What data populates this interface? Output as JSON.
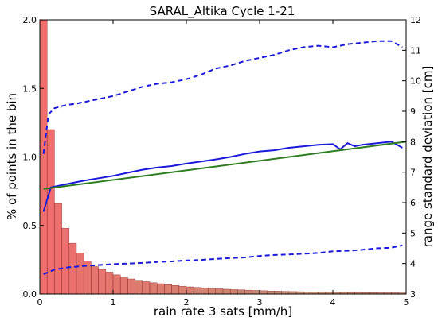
{
  "chart_data": {
    "type": "bar",
    "title": "SARAL_Altika Cycle 1-21",
    "xlabel": "rain rate 3 sats [mm/h]",
    "ylabel_left": "% of points in the bin",
    "ylabel_right": "range standard deviation [cm]",
    "xlim": [
      0,
      5
    ],
    "ylim_left": [
      0.0,
      2.0
    ],
    "ylim_right": [
      3,
      12
    ],
    "x_ticks": [
      "0",
      "1",
      "2",
      "3",
      "4",
      "5"
    ],
    "y_left_ticks": [
      "0.0",
      "0.5",
      "1.0",
      "1.5",
      "2.0"
    ],
    "y_right_ticks": [
      "3",
      "4",
      "5",
      "6",
      "7",
      "8",
      "9",
      "10",
      "11",
      "12"
    ],
    "grid": false,
    "histogram": {
      "axis": "left",
      "bin_width": 0.1,
      "bin_starts": [
        0.0,
        0.1,
        0.2,
        0.3,
        0.4,
        0.5,
        0.6,
        0.7,
        0.8,
        0.9,
        1.0,
        1.1,
        1.2,
        1.3,
        1.4,
        1.5,
        1.6,
        1.7,
        1.8,
        1.9,
        2.0,
        2.1,
        2.2,
        2.3,
        2.4,
        2.5,
        2.6,
        2.7,
        2.8,
        2.9,
        3.0,
        3.1,
        3.2,
        3.3,
        3.4,
        3.5,
        3.6,
        3.7,
        3.8,
        3.9,
        4.0,
        4.1,
        4.2,
        4.3,
        4.4,
        4.5,
        4.6,
        4.7,
        4.8,
        4.9
      ],
      "values": [
        2.0,
        1.2,
        0.66,
        0.48,
        0.37,
        0.3,
        0.24,
        0.2,
        0.18,
        0.16,
        0.14,
        0.125,
        0.11,
        0.1,
        0.09,
        0.082,
        0.075,
        0.068,
        0.062,
        0.057,
        0.052,
        0.048,
        0.044,
        0.041,
        0.038,
        0.035,
        0.032,
        0.03,
        0.028,
        0.026,
        0.024,
        0.022,
        0.021,
        0.019,
        0.018,
        0.017,
        0.016,
        0.015,
        0.014,
        0.013,
        0.012,
        0.012,
        0.011,
        0.011,
        0.01,
        0.01,
        0.009,
        0.009,
        0.009,
        0.008
      ]
    },
    "series": [
      {
        "axis": "right",
        "style": "solid",
        "color": "#1a1adb",
        "x": [
          0.05,
          0.15,
          0.25,
          0.35,
          0.45,
          0.6,
          0.8,
          1.0,
          1.2,
          1.4,
          1.6,
          1.8,
          2.0,
          2.2,
          2.4,
          2.6,
          2.8,
          3.0,
          3.2,
          3.4,
          3.6,
          3.8,
          4.0,
          4.1,
          4.2,
          4.3,
          4.4,
          4.6,
          4.8,
          4.95
        ],
        "y": [
          5.7,
          6.5,
          6.55,
          6.6,
          6.65,
          6.72,
          6.8,
          6.88,
          6.98,
          7.08,
          7.15,
          7.2,
          7.28,
          7.35,
          7.42,
          7.5,
          7.6,
          7.68,
          7.72,
          7.8,
          7.85,
          7.9,
          7.92,
          7.75,
          7.95,
          7.85,
          7.9,
          7.95,
          8.0,
          7.8
        ]
      },
      {
        "axis": "right",
        "style": "dashed",
        "color": "#1a1adb",
        "x": [
          0.05,
          0.12,
          0.2,
          0.35,
          0.5,
          0.7,
          0.9,
          1.0,
          1.2,
          1.4,
          1.6,
          1.8,
          2.0,
          2.2,
          2.4,
          2.6,
          2.8,
          3.0,
          3.2,
          3.4,
          3.6,
          3.8,
          4.0,
          4.2,
          4.4,
          4.6,
          4.8,
          4.95
        ],
        "y": [
          7.6,
          8.9,
          9.1,
          9.2,
          9.25,
          9.35,
          9.45,
          9.5,
          9.65,
          9.8,
          9.9,
          9.95,
          10.05,
          10.2,
          10.4,
          10.5,
          10.65,
          10.75,
          10.85,
          11.0,
          11.1,
          11.15,
          11.1,
          11.2,
          11.25,
          11.3,
          11.3,
          11.1
        ]
      },
      {
        "axis": "right",
        "style": "dashed",
        "color": "#1a1adb",
        "x": [
          0.05,
          0.2,
          0.4,
          0.6,
          0.8,
          1.0,
          1.2,
          1.4,
          1.6,
          1.8,
          2.0,
          2.2,
          2.4,
          2.6,
          2.8,
          3.0,
          3.2,
          3.4,
          3.6,
          3.8,
          4.0,
          4.2,
          4.4,
          4.6,
          4.8,
          4.95
        ],
        "y": [
          3.65,
          3.8,
          3.88,
          3.92,
          3.95,
          3.98,
          4.0,
          4.02,
          4.05,
          4.07,
          4.1,
          4.12,
          4.15,
          4.18,
          4.2,
          4.25,
          4.28,
          4.3,
          4.32,
          4.35,
          4.4,
          4.42,
          4.45,
          4.5,
          4.52,
          4.6
        ]
      },
      {
        "axis": "right",
        "style": "solid",
        "color": "#2e7d1f",
        "x": [
          0.05,
          5.0
        ],
        "y": [
          6.45,
          8.0
        ]
      }
    ],
    "colors": {
      "bar_fill_low": "#ee5555",
      "bar_fill_high": "#b87c5a",
      "bar_edge": "#8b2020"
    }
  }
}
